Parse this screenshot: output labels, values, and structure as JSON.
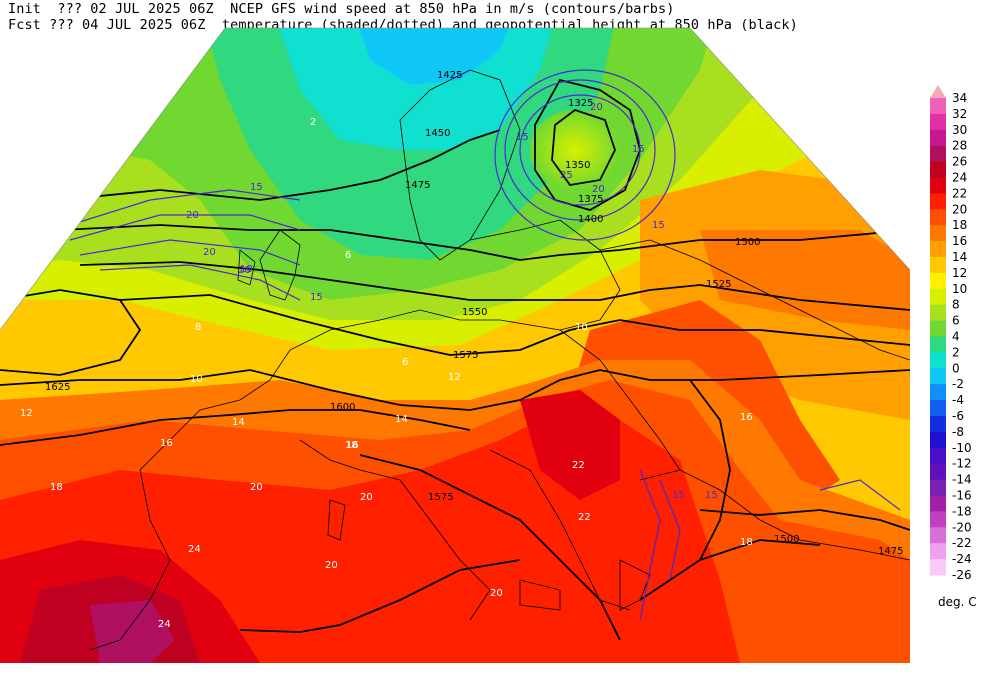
{
  "header": {
    "line1": "Init  ??? 02 JUL 2025 06Z  NCEP GFS wind speed at 850 hPa in m/s (contours/barbs)",
    "line2": "Fcst ??? 04 JUL 2025 06Z  temperature (shaded/dotted) and geopotential height at 850 hPa (black)"
  },
  "legend": {
    "unit": "deg. C",
    "levels": [
      34,
      32,
      30,
      28,
      26,
      24,
      22,
      20,
      18,
      16,
      14,
      12,
      10,
      8,
      6,
      4,
      2,
      0,
      -2,
      -4,
      -6,
      -8,
      -10,
      -12,
      -14,
      -16,
      -18,
      -20,
      -22,
      -24,
      -26
    ],
    "colors": [
      "#f5a8b8",
      "#f060b8",
      "#e030a8",
      "#c81890",
      "#b01060",
      "#c00020",
      "#e00010",
      "#ff2000",
      "#ff5000",
      "#ff7800",
      "#ffa000",
      "#ffc800",
      "#fff000",
      "#d8f000",
      "#a8e020",
      "#70d830",
      "#30d880",
      "#10e0d0",
      "#10c8f8",
      "#1090f8",
      "#1060f0",
      "#1030e0",
      "#2010d0",
      "#4a10c8",
      "#6010b8",
      "#7820b0",
      "#a020a8",
      "#c040c0",
      "#d870d8",
      "#f0a0f0",
      "#f8c8f8"
    ]
  },
  "map": {
    "height_contour_labels": [
      "1425",
      "1450",
      "1475",
      "1500",
      "1525",
      "1550",
      "1575",
      "1600",
      "1625",
      "1325",
      "1350",
      "1375",
      "1400",
      "1575",
      "1500",
      "1475"
    ],
    "wind_labels": [
      "15",
      "20",
      "25",
      "20",
      "15",
      "10",
      "15",
      "20",
      "15",
      "15",
      "20",
      "15",
      "20",
      "15"
    ],
    "temp_labels": [
      "2",
      "6",
      "8",
      "10",
      "12",
      "14",
      "16",
      "18",
      "20",
      "22",
      "24",
      "6",
      "10",
      "12",
      "14",
      "16",
      "18",
      "20",
      "22",
      "24",
      "20",
      "20",
      "18",
      "16"
    ]
  }
}
